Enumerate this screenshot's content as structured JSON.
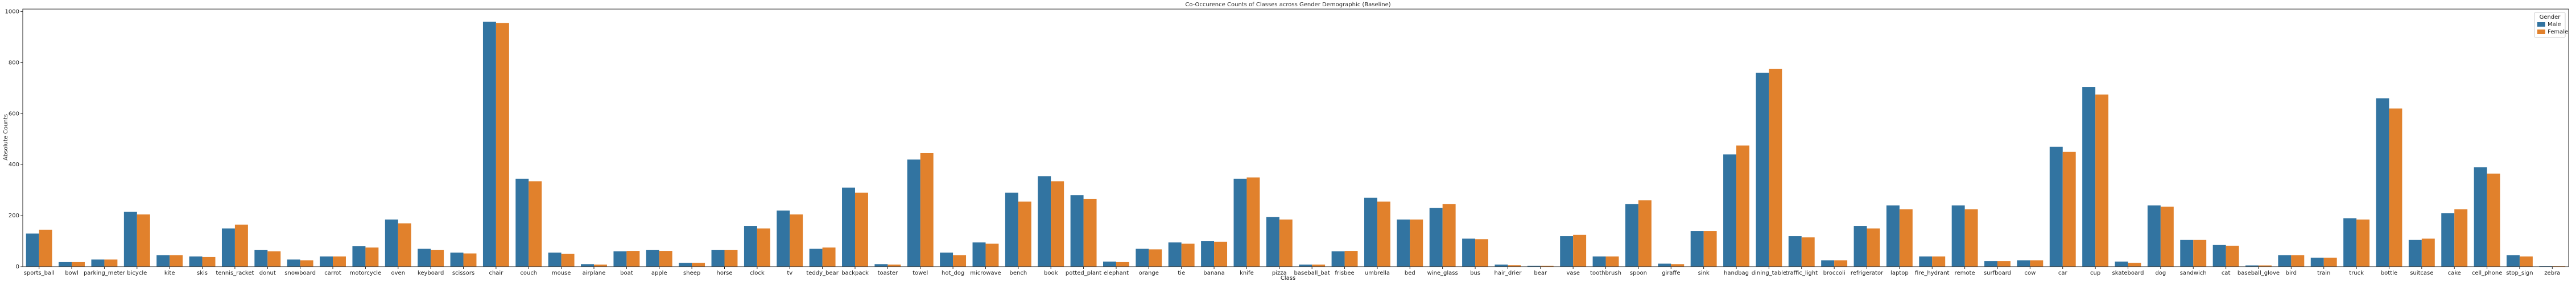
{
  "chart_data": {
    "type": "bar",
    "title": "Co-Occurence Counts of Classes across Gender Demographic (Baseline)",
    "x_label": "Class",
    "y_label": "Absolute Counts",
    "legend_title": "Gender",
    "legend_position": "upper right",
    "categories": [
      "sports_ball",
      "bowl",
      "parking_meter",
      "bicycle",
      "kite",
      "skis",
      "tennis_racket",
      "donut",
      "snowboard",
      "carrot",
      "motorcycle",
      "oven",
      "keyboard",
      "scissors",
      "chair",
      "couch",
      "mouse",
      "airplane",
      "boat",
      "apple",
      "sheep",
      "horse",
      "clock",
      "tv",
      "teddy_bear",
      "backpack",
      "toaster",
      "towel",
      "hot_dog",
      "microwave",
      "bench",
      "book",
      "potted_plant",
      "elephant",
      "orange",
      "tie",
      "banana",
      "knife",
      "pizza",
      "baseball_bat",
      "frisbee",
      "umbrella",
      "bed",
      "wine_glass",
      "bus",
      "hair_drier",
      "bear",
      "vase",
      "toothbrush",
      "spoon",
      "giraffe",
      "sink",
      "handbag",
      "dining_table",
      "traffic_light",
      "broccoli",
      "refrigerator",
      "laptop",
      "fire_hydrant",
      "remote",
      "surfboard",
      "cow",
      "car",
      "cup",
      "skateboard",
      "dog",
      "sandwich",
      "cat",
      "baseball_glove",
      "bird",
      "train",
      "truck",
      "bottle",
      "suitcase",
      "cake",
      "cell_phone",
      "stop_sign",
      "zebra"
    ],
    "series": [
      {
        "name": "Male",
        "color": "#3274a1",
        "values": [
          130,
          18,
          28,
          215,
          45,
          40,
          150,
          65,
          28,
          40,
          80,
          185,
          70,
          55,
          960,
          345,
          55,
          10,
          60,
          65,
          15,
          65,
          160,
          220,
          70,
          310,
          10,
          420,
          55,
          95,
          290,
          355,
          280,
          20,
          70,
          95,
          100,
          345,
          195,
          8,
          60,
          270,
          185,
          230,
          110,
          8,
          3,
          120,
          40,
          245,
          12,
          140,
          440,
          760,
          120,
          25,
          160,
          240,
          40,
          240,
          22,
          25,
          470,
          705,
          20,
          240,
          105,
          85,
          5,
          45,
          35,
          190,
          660,
          105,
          210,
          390,
          45,
          2
        ]
      },
      {
        "name": "Female",
        "color": "#e1812c",
        "values": [
          145,
          18,
          28,
          205,
          45,
          38,
          165,
          60,
          25,
          40,
          75,
          170,
          65,
          52,
          955,
          335,
          50,
          8,
          62,
          62,
          15,
          65,
          150,
          205,
          75,
          290,
          8,
          445,
          45,
          90,
          255,
          335,
          265,
          18,
          68,
          90,
          98,
          350,
          185,
          8,
          62,
          255,
          185,
          245,
          108,
          6,
          3,
          125,
          40,
          260,
          10,
          140,
          475,
          775,
          115,
          25,
          150,
          225,
          40,
          225,
          22,
          25,
          450,
          675,
          15,
          235,
          105,
          82,
          5,
          45,
          35,
          185,
          620,
          110,
          225,
          365,
          40,
          2
        ]
      }
    ],
    "ylim": [
      0,
      1010
    ],
    "yticks": [
      0,
      200,
      400,
      600,
      800,
      1000
    ],
    "grid": false
  }
}
